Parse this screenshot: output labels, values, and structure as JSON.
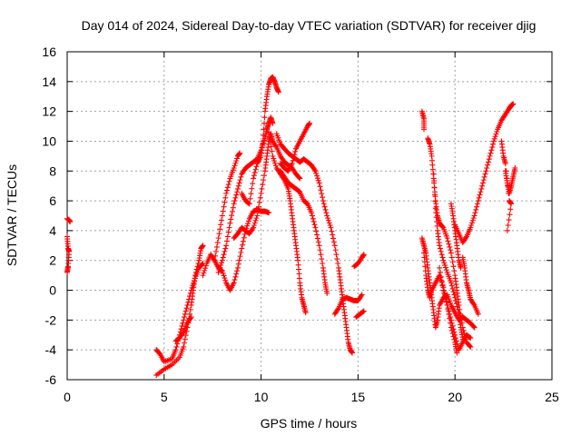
{
  "chart_data": {
    "type": "scatter",
    "title": "Day 014 of 2024, Sidereal Day-to-day VTEC variation (SDTVAR) for receiver djig",
    "xlabel": "GPS time / hours",
    "ylabel": "SDTVAR / TECUs",
    "xlim": [
      0,
      25
    ],
    "ylim": [
      -6,
      16
    ],
    "xticks": [
      0,
      5,
      10,
      15,
      20,
      25
    ],
    "yticks": [
      -6,
      -4,
      -2,
      0,
      2,
      4,
      6,
      8,
      10,
      12,
      14,
      16
    ],
    "grid": true,
    "legend": "none",
    "marker": "+",
    "color": "#ff0000",
    "segments": [
      {
        "points": [
          [
            0.0,
            4.8
          ],
          [
            0.1,
            4.7
          ],
          [
            0.15,
            4.6
          ]
        ]
      },
      {
        "points": [
          [
            0.0,
            3.6
          ],
          [
            0.05,
            2.8
          ],
          [
            0.1,
            2.6
          ],
          [
            0.05,
            1.6
          ],
          [
            0.0,
            1.2
          ]
        ]
      },
      {
        "points": [
          [
            4.6,
            -4.0
          ],
          [
            4.8,
            -4.3
          ],
          [
            5.0,
            -4.8
          ],
          [
            5.4,
            -4.6
          ],
          [
            5.6,
            -4.0
          ],
          [
            5.8,
            -3.0
          ],
          [
            6.0,
            -2.0
          ],
          [
            6.2,
            -1.0
          ],
          [
            6.4,
            0.0
          ],
          [
            6.6,
            0.8
          ],
          [
            6.8,
            1.5
          ],
          [
            7.0,
            1.8
          ]
        ]
      },
      {
        "points": [
          [
            4.6,
            -5.7
          ],
          [
            5.0,
            -5.3
          ],
          [
            5.4,
            -5.0
          ],
          [
            5.8,
            -4.5
          ],
          [
            6.0,
            -3.8
          ],
          [
            6.2,
            -2.5
          ],
          [
            6.4,
            -1.0
          ],
          [
            6.5,
            0.0
          ],
          [
            6.6,
            1.0
          ],
          [
            6.8,
            2.0
          ],
          [
            6.9,
            2.8
          ],
          [
            7.0,
            3.0
          ]
        ]
      },
      {
        "points": [
          [
            5.6,
            -3.4
          ],
          [
            5.8,
            -3.2
          ],
          [
            6.0,
            -2.8
          ],
          [
            6.2,
            -2.2
          ],
          [
            6.4,
            -1.8
          ]
        ]
      },
      {
        "points": [
          [
            7.0,
            1.0
          ],
          [
            7.2,
            1.8
          ],
          [
            7.4,
            2.4
          ],
          [
            7.6,
            2.0
          ],
          [
            7.8,
            1.5
          ],
          [
            8.0,
            1.3
          ],
          [
            8.2,
            0.5
          ],
          [
            8.4,
            0.0
          ],
          [
            8.6,
            0.5
          ],
          [
            8.8,
            1.5
          ],
          [
            9.0,
            2.8
          ],
          [
            9.2,
            4.0
          ],
          [
            9.4,
            4.8
          ],
          [
            9.6,
            5.3
          ],
          [
            9.8,
            5.4
          ],
          [
            10.0,
            5.3
          ],
          [
            10.2,
            5.3
          ],
          [
            10.4,
            5.2
          ]
        ]
      },
      {
        "points": [
          [
            7.6,
            2.0
          ],
          [
            7.8,
            3.5
          ],
          [
            8.0,
            5.0
          ],
          [
            8.2,
            6.5
          ],
          [
            8.4,
            7.5
          ],
          [
            8.6,
            8.2
          ],
          [
            8.8,
            9.0
          ],
          [
            8.9,
            9.2
          ]
        ]
      },
      {
        "points": [
          [
            7.8,
            1.2
          ],
          [
            8.0,
            2.0
          ],
          [
            8.2,
            3.0
          ],
          [
            8.4,
            4.5
          ],
          [
            8.6,
            5.8
          ],
          [
            8.8,
            6.8
          ],
          [
            9.0,
            7.8
          ],
          [
            9.2,
            8.2
          ],
          [
            9.4,
            8.4
          ],
          [
            9.6,
            8.6
          ],
          [
            9.8,
            8.8
          ],
          [
            10.0,
            9.4
          ],
          [
            10.2,
            10.2
          ],
          [
            10.3,
            10.8
          ],
          [
            10.4,
            11.2
          ],
          [
            10.5,
            11.6
          ],
          [
            10.6,
            11.2
          ]
        ]
      },
      {
        "points": [
          [
            8.6,
            3.5
          ],
          [
            8.8,
            3.8
          ],
          [
            9.0,
            4.2
          ],
          [
            9.2,
            4.0
          ],
          [
            9.4,
            3.8
          ],
          [
            9.6,
            4.2
          ],
          [
            9.8,
            5.0
          ],
          [
            10.0,
            6.5
          ],
          [
            10.2,
            8.0
          ],
          [
            10.3,
            9.0
          ],
          [
            10.4,
            10.0
          ],
          [
            10.5,
            10.5
          ],
          [
            10.6,
            10.0
          ],
          [
            10.8,
            9.6
          ],
          [
            11.0,
            9.0
          ],
          [
            11.2,
            8.6
          ],
          [
            11.4,
            8.4
          ],
          [
            11.6,
            8.2
          ],
          [
            11.8,
            7.8
          ],
          [
            12.0,
            7.5
          ]
        ]
      },
      {
        "points": [
          [
            9.0,
            6.5
          ],
          [
            9.2,
            6.0
          ],
          [
            9.4,
            5.8
          ],
          [
            9.6,
            7.5
          ],
          [
            9.8,
            8.5
          ],
          [
            10.0,
            9.0
          ],
          [
            10.1,
            10.0
          ],
          [
            10.2,
            12.0
          ],
          [
            10.3,
            13.0
          ],
          [
            10.4,
            13.8
          ],
          [
            10.5,
            14.2
          ],
          [
            10.6,
            14.3
          ],
          [
            10.7,
            14.0
          ],
          [
            10.8,
            13.6
          ],
          [
            10.9,
            13.3
          ]
        ]
      },
      {
        "points": [
          [
            10.4,
            10.6
          ],
          [
            10.6,
            9.0
          ],
          [
            10.8,
            8.2
          ],
          [
            11.0,
            7.8
          ],
          [
            11.2,
            7.4
          ],
          [
            11.4,
            6.8
          ],
          [
            11.5,
            6.0
          ],
          [
            11.6,
            5.0
          ],
          [
            11.7,
            4.0
          ],
          [
            11.8,
            3.0
          ],
          [
            11.9,
            2.0
          ],
          [
            12.0,
            0.5
          ],
          [
            12.1,
            -0.5
          ],
          [
            12.2,
            -1.0
          ],
          [
            12.3,
            -1.5
          ]
        ]
      },
      {
        "points": [
          [
            10.8,
            10.5
          ],
          [
            11.0,
            9.8
          ],
          [
            11.2,
            9.5
          ],
          [
            11.4,
            9.2
          ],
          [
            11.6,
            9.0
          ],
          [
            11.8,
            8.8
          ],
          [
            12.0,
            8.6
          ],
          [
            12.2,
            8.8
          ],
          [
            12.4,
            8.6
          ],
          [
            12.6,
            8.4
          ],
          [
            12.8,
            8.0
          ],
          [
            13.0,
            7.2
          ],
          [
            13.2,
            6.0
          ],
          [
            13.4,
            5.0
          ],
          [
            13.6,
            4.2
          ],
          [
            13.8,
            3.0
          ],
          [
            14.0,
            1.5
          ],
          [
            14.1,
            0.5
          ],
          [
            14.2,
            -0.5
          ],
          [
            14.3,
            -1.5
          ],
          [
            14.4,
            -2.5
          ],
          [
            14.5,
            -3.5
          ],
          [
            14.6,
            -4.0
          ],
          [
            14.7,
            -4.2
          ]
        ]
      },
      {
        "points": [
          [
            11.0,
            8.5
          ],
          [
            11.2,
            8.2
          ],
          [
            11.4,
            8.0
          ],
          [
            11.6,
            8.5
          ],
          [
            11.8,
            9.5
          ],
          [
            12.0,
            10.0
          ],
          [
            12.2,
            10.5
          ],
          [
            12.4,
            11.0
          ],
          [
            12.5,
            11.2
          ]
        ]
      },
      {
        "points": [
          [
            11.0,
            8.0
          ],
          [
            11.2,
            7.6
          ],
          [
            11.4,
            7.2
          ],
          [
            11.6,
            7.0
          ],
          [
            11.8,
            6.8
          ],
          [
            12.0,
            6.6
          ],
          [
            12.2,
            6.0
          ],
          [
            12.4,
            5.8
          ],
          [
            12.6,
            5.2
          ],
          [
            12.8,
            4.2
          ],
          [
            13.0,
            3.0
          ],
          [
            13.2,
            1.5
          ],
          [
            13.3,
            0.5
          ],
          [
            13.4,
            -0.2
          ]
        ]
      },
      {
        "points": [
          [
            13.8,
            -1.6
          ],
          [
            14.0,
            -1.2
          ],
          [
            14.2,
            -0.6
          ],
          [
            14.4,
            -0.5
          ],
          [
            14.6,
            -0.6
          ],
          [
            14.8,
            -0.7
          ],
          [
            15.0,
            -0.7
          ],
          [
            15.2,
            -0.3
          ]
        ]
      },
      {
        "points": [
          [
            14.8,
            1.6
          ],
          [
            15.0,
            1.8
          ],
          [
            15.2,
            2.2
          ],
          [
            15.3,
            2.4
          ]
        ]
      },
      {
        "points": [
          [
            14.9,
            -1.8
          ],
          [
            15.1,
            -1.6
          ],
          [
            15.3,
            -1.4
          ]
        ]
      },
      {
        "points": [
          [
            18.3,
            12.0
          ],
          [
            18.4,
            11.5
          ],
          [
            18.4,
            10.8
          ]
        ]
      },
      {
        "points": [
          [
            18.3,
            3.5
          ],
          [
            18.4,
            3.0
          ],
          [
            18.5,
            2.5
          ],
          [
            18.6,
            1.5
          ],
          [
            18.7,
            0.5
          ],
          [
            18.8,
            -0.5
          ],
          [
            18.9,
            -1.5
          ],
          [
            19.0,
            -2.5
          ],
          [
            19.1,
            -2.0
          ],
          [
            19.2,
            -1.0
          ],
          [
            19.4,
            -0.5
          ],
          [
            19.6,
            -0.3
          ],
          [
            19.8,
            -1.0
          ],
          [
            20.0,
            -1.5
          ],
          [
            20.2,
            -2.0
          ],
          [
            20.4,
            -1.8
          ],
          [
            20.6,
            -2.0
          ],
          [
            20.8,
            -2.2
          ],
          [
            21.0,
            -2.5
          ]
        ]
      },
      {
        "points": [
          [
            18.4,
            2.5
          ],
          [
            18.5,
            1.0
          ],
          [
            18.6,
            0.0
          ],
          [
            18.7,
            -0.5
          ],
          [
            18.8,
            0.0
          ],
          [
            19.0,
            0.5
          ],
          [
            19.2,
            1.0
          ],
          [
            19.4,
            0.2
          ],
          [
            19.6,
            -1.0
          ],
          [
            19.8,
            -2.0
          ],
          [
            20.0,
            -3.0
          ],
          [
            20.2,
            -4.0
          ],
          [
            20.4,
            -3.5
          ],
          [
            20.6,
            -3.0
          ],
          [
            20.8,
            -3.2
          ]
        ]
      },
      {
        "points": [
          [
            18.6,
            10.2
          ],
          [
            18.7,
            9.8
          ],
          [
            18.8,
            9.0
          ],
          [
            18.9,
            7.5
          ],
          [
            19.0,
            6.0
          ],
          [
            19.1,
            5.0
          ],
          [
            19.2,
            4.5
          ],
          [
            19.4,
            4.2
          ],
          [
            19.6,
            3.5
          ],
          [
            19.8,
            2.5
          ],
          [
            20.0,
            1.0
          ],
          [
            20.1,
            0.0
          ],
          [
            20.2,
            -1.0
          ],
          [
            20.4,
            -2.5
          ],
          [
            20.6,
            -3.5
          ],
          [
            20.8,
            -3.8
          ]
        ]
      },
      {
        "points": [
          [
            18.9,
            7.8
          ],
          [
            19.0,
            5.5
          ],
          [
            19.1,
            4.0
          ],
          [
            19.2,
            3.0
          ],
          [
            19.4,
            2.0
          ],
          [
            19.6,
            1.2
          ],
          [
            19.8,
            0.5
          ],
          [
            20.0,
            -0.5
          ],
          [
            20.2,
            -1.5
          ],
          [
            20.3,
            -2.5
          ],
          [
            20.4,
            -3.3
          ]
        ]
      },
      {
        "points": [
          [
            19.2,
            1.5
          ],
          [
            19.4,
            0.0
          ],
          [
            19.6,
            -1.0
          ],
          [
            19.8,
            -2.5
          ],
          [
            20.0,
            -3.5
          ],
          [
            20.1,
            -4.2
          ]
        ]
      },
      {
        "points": [
          [
            19.8,
            5.8
          ],
          [
            19.9,
            5.0
          ],
          [
            20.0,
            4.0
          ],
          [
            20.1,
            3.0
          ],
          [
            20.2,
            2.0
          ],
          [
            20.3,
            1.5
          ]
        ]
      },
      {
        "points": [
          [
            20.0,
            4.4
          ],
          [
            20.2,
            3.8
          ],
          [
            20.4,
            3.2
          ],
          [
            20.6,
            3.6
          ],
          [
            20.8,
            4.2
          ],
          [
            21.0,
            5.0
          ],
          [
            21.2,
            6.0
          ],
          [
            21.4,
            7.0
          ],
          [
            21.6,
            8.0
          ],
          [
            21.8,
            9.0
          ],
          [
            22.0,
            10.0
          ],
          [
            22.2,
            10.8
          ],
          [
            22.4,
            11.4
          ],
          [
            22.6,
            11.8
          ],
          [
            22.8,
            12.2
          ],
          [
            22.9,
            12.4
          ],
          [
            23.0,
            12.5
          ]
        ]
      },
      {
        "points": [
          [
            20.4,
            2.2
          ],
          [
            20.5,
            1.5
          ],
          [
            20.6,
            0.5
          ],
          [
            20.7,
            0.0
          ],
          [
            20.8,
            -0.6
          ],
          [
            21.0,
            -1.0
          ],
          [
            21.2,
            -1.6
          ]
        ]
      },
      {
        "points": [
          [
            22.6,
            8.0
          ],
          [
            22.7,
            7.2
          ],
          [
            22.8,
            6.5
          ],
          [
            22.9,
            7.0
          ],
          [
            23.0,
            7.6
          ],
          [
            23.1,
            8.2
          ]
        ]
      },
      {
        "points": [
          [
            22.4,
            10.0
          ],
          [
            22.5,
            9.0
          ],
          [
            22.6,
            8.5
          ],
          [
            22.8,
            6.0
          ],
          [
            22.9,
            5.8
          ],
          [
            22.7,
            4.0
          ]
        ]
      }
    ]
  }
}
